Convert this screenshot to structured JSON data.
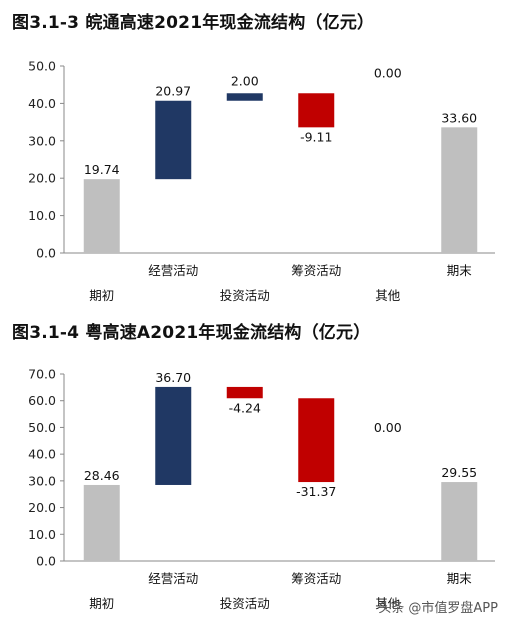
{
  "chart_data": [
    {
      "type": "waterfall",
      "title": "图3.1-3 皖通高速2021年现金流结构（亿元）",
      "categories": [
        "期初",
        "经营活动",
        "投资活动",
        "筹资活动",
        "其他",
        "期末"
      ],
      "values": [
        19.74,
        20.97,
        2.0,
        -9.11,
        0.0,
        33.6
      ],
      "value_labels": [
        "19.74",
        "20.97",
        "2.00",
        "-9.11",
        "0.00",
        "33.60"
      ],
      "ylim": [
        0,
        50
      ],
      "yticks": [
        "0.0",
        "10.0",
        "20.0",
        "30.0",
        "40.0",
        "50.0"
      ],
      "grid": false
    },
    {
      "type": "waterfall",
      "title": "图3.1-4 粤高速A2021年现金流结构（亿元）",
      "categories": [
        "期初",
        "经营活动",
        "投资活动",
        "筹资活动",
        "其他",
        "期末"
      ],
      "values": [
        28.46,
        36.7,
        -4.24,
        -31.37,
        0.0,
        29.55
      ],
      "value_labels": [
        "28.46",
        "36.70",
        "-4.24",
        "-31.37",
        "0.00",
        "29.55"
      ],
      "ylim": [
        0,
        70
      ],
      "yticks": [
        "0.0",
        "10.0",
        "20.0",
        "30.0",
        "40.0",
        "50.0",
        "60.0",
        "70.0"
      ],
      "grid": false
    }
  ],
  "colors": {
    "total": "#bfbfbf",
    "increase": "#203864",
    "decrease": "#c00000"
  },
  "watermark": "头条 @市值罗盘APP"
}
